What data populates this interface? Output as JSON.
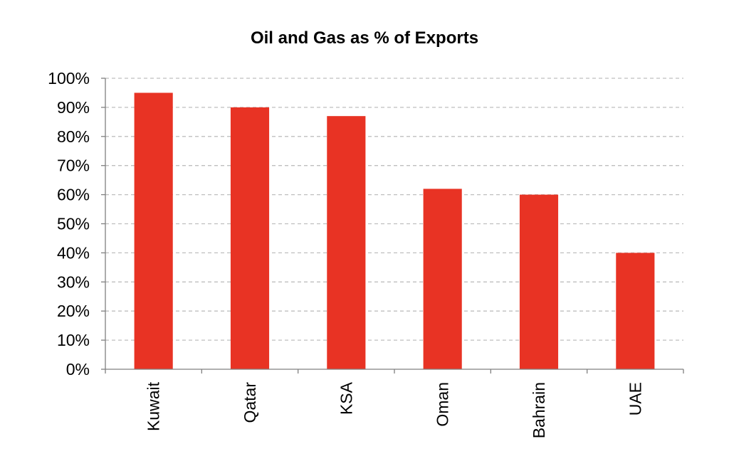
{
  "chart_data": {
    "type": "bar",
    "title": "Oil and Gas as % of Exports",
    "xlabel": "",
    "ylabel": "",
    "categories": [
      "Kuwait",
      "Qatar",
      "KSA",
      "Oman",
      "Bahrain",
      "UAE"
    ],
    "values": [
      95,
      90,
      87,
      62,
      60,
      40
    ],
    "ylim": [
      0,
      100
    ],
    "yticks": [
      "0%",
      "10%",
      "20%",
      "30%",
      "40%",
      "50%",
      "60%",
      "70%",
      "80%",
      "90%",
      "100%"
    ],
    "grid": "horizontal dashed",
    "legend": "none",
    "colors": {
      "bar": "#E83324",
      "grid": "#BFBFBF",
      "axis": "#808080"
    }
  }
}
